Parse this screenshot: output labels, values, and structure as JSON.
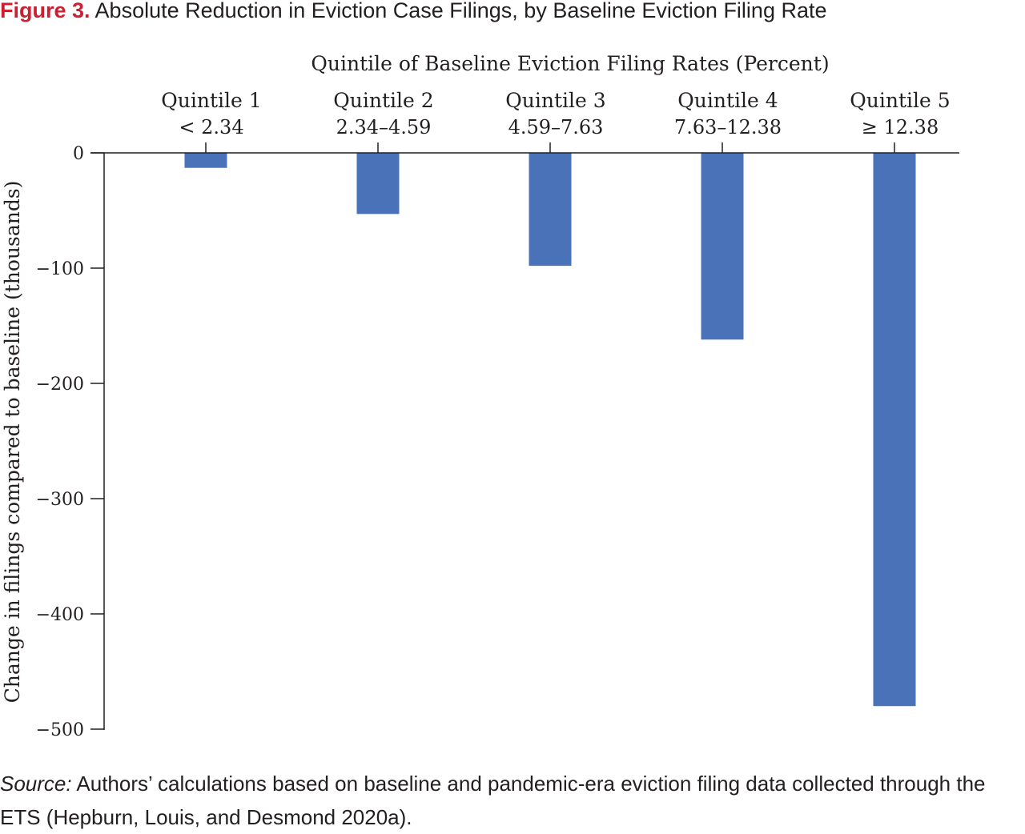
{
  "figure": {
    "number_label": "Figure 3.",
    "title": " Absolute Reduction in Eviction Case Filings, by Baseline Eviction Filing Rate"
  },
  "source": {
    "label": "Source:",
    "text": " Authors’ calculations based on baseline and pandemic-era eviction filing data collected through the ETS (Hepburn, Louis, and Desmond 2020a)."
  },
  "chart_data": {
    "type": "bar",
    "title": "Absolute Reduction in Eviction Case Filings, by Baseline Eviction Filing Rate",
    "xlabel": "Quintile of Baseline Eviction Filing Rates (Percent)",
    "ylabel": "Change in filings compared to baseline (thousands)",
    "x_axis_position": "top",
    "categories": [
      "Quintile 1",
      "Quintile 2",
      "Quintile 3",
      "Quintile 4",
      "Quintile 5"
    ],
    "category_ranges": [
      "< 2.34",
      "2.34–4.59",
      "4.59–7.63",
      "7.63–12.38",
      "≥ 12.38"
    ],
    "values": [
      -13,
      -53,
      -98,
      -162,
      -480
    ],
    "ylim": [
      -500,
      0
    ],
    "yticks": [
      0,
      -100,
      -200,
      -300,
      -400,
      -500
    ],
    "ytick_labels": [
      "0",
      "−100",
      "−200",
      "−300",
      "−400",
      "−500"
    ],
    "bar_color": "#4a72b8",
    "grid": false
  }
}
